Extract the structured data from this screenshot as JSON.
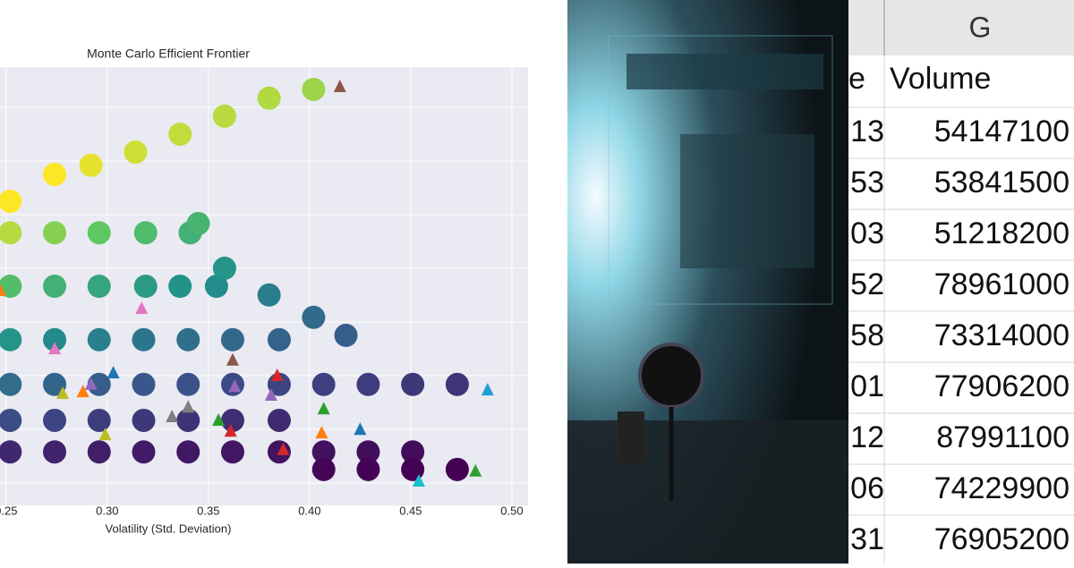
{
  "chart_data": {
    "type": "scatter",
    "title": "Monte Carlo Efficient Frontier",
    "xlabel": "Volatility (Std. Deviation)",
    "xlim": [
      0.247,
      0.508
    ],
    "ylim": [
      0,
      1
    ],
    "xticks": [
      {
        "value": 0.25,
        "label": "0.25"
      },
      {
        "value": 0.3,
        "label": "0.30"
      },
      {
        "value": 0.35,
        "label": "0.35"
      },
      {
        "value": 0.4,
        "label": "0.40"
      },
      {
        "value": 0.45,
        "label": "0.45"
      },
      {
        "value": 0.5,
        "label": "0.50"
      }
    ],
    "grid": true,
    "colormap": "viridis",
    "series": [
      {
        "x": [
          0.252,
          0.274,
          0.292,
          0.314,
          0.336,
          0.358,
          0.38,
          0.402,
          0.252,
          0.274,
          0.296,
          0.319,
          0.341,
          0.252,
          0.274,
          0.296,
          0.319,
          0.336,
          0.354,
          0.252,
          0.274,
          0.296,
          0.318,
          0.34,
          0.362,
          0.385,
          0.252,
          0.274,
          0.296,
          0.318,
          0.34,
          0.362,
          0.385,
          0.407,
          0.429,
          0.451,
          0.473,
          0.252,
          0.274,
          0.296,
          0.318,
          0.34,
          0.362,
          0.385,
          0.252,
          0.274,
          0.296,
          0.318,
          0.34,
          0.362,
          0.385,
          0.407,
          0.429,
          0.451,
          0.407,
          0.429,
          0.451,
          0.473,
          0.345,
          0.358,
          0.38,
          0.402,
          0.418
        ],
        "values": [
          0.694,
          0.755,
          0.776,
          0.806,
          0.847,
          0.888,
          0.929,
          0.949,
          0.622,
          0.622,
          0.622,
          0.622,
          0.622,
          0.5,
          0.5,
          0.5,
          0.5,
          0.5,
          0.5,
          0.378,
          0.378,
          0.378,
          0.378,
          0.378,
          0.378,
          0.378,
          0.276,
          0.276,
          0.276,
          0.276,
          0.276,
          0.276,
          0.276,
          0.276,
          0.276,
          0.276,
          0.276,
          0.194,
          0.194,
          0.194,
          0.194,
          0.194,
          0.194,
          0.194,
          0.122,
          0.122,
          0.122,
          0.122,
          0.122,
          0.122,
          0.122,
          0.122,
          0.122,
          0.122,
          0.082,
          0.082,
          0.082,
          0.082,
          0.643,
          0.541,
          0.48,
          0.429,
          0.388
        ]
      }
    ],
    "markers": {
      "x": [
        0.415,
        0.488,
        0.482,
        0.454,
        0.317,
        0.274,
        0.278,
        0.288,
        0.292,
        0.303,
        0.299,
        0.332,
        0.34,
        0.355,
        0.361,
        0.362,
        0.363,
        0.381,
        0.384,
        0.387,
        0.407,
        0.406,
        0.425,
        0.247
      ],
      "values": [
        0.955,
        0.263,
        0.078,
        0.055,
        0.449,
        0.357,
        0.255,
        0.259,
        0.276,
        0.302,
        0.161,
        0.202,
        0.224,
        0.194,
        0.169,
        0.331,
        0.271,
        0.251,
        0.296,
        0.127,
        0.22,
        0.165,
        0.173,
        0.49
      ],
      "colors": [
        "#8c564b",
        "#1f9fd4",
        "#2ca02c",
        "#17becf",
        "#e377c2",
        "#e377c2",
        "#bcbd22",
        "#ff7f0e",
        "#9467bd",
        "#1f77b4",
        "#bcbd22",
        "#7f7f7f",
        "#7f7f7f",
        "#2ca02c",
        "#d62728",
        "#8c564b",
        "#9467bd",
        "#9467bd",
        "#d62728",
        "#d62728",
        "#2ca02c",
        "#ff7f0e",
        "#1f77b4",
        "#ff7f0e"
      ]
    }
  },
  "spreadsheet": {
    "column_header": "G",
    "header_fragment": "e",
    "header": "Volume",
    "fragments": [
      "13",
      "53",
      "03",
      "52",
      "58",
      "01",
      "12",
      "06",
      "31"
    ],
    "values": [
      54147100,
      53841500,
      51218200,
      78961000,
      73314000,
      77906200,
      87991100,
      74229900,
      76905200
    ]
  }
}
